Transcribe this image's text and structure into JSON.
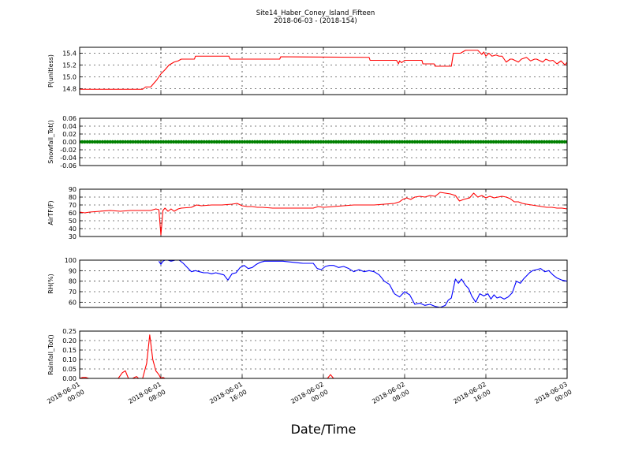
{
  "title": "Site14_Haber_Coney_Island_Fifteen",
  "subtitle": "2018-06-03 - (2018-154)",
  "xlabel": "Date/Time",
  "x_ticks": [
    {
      "t": 0,
      "line1": "2018-06-01",
      "line2": "00:00"
    },
    {
      "t": 8,
      "line1": "2018-06-01",
      "line2": "08:00"
    },
    {
      "t": 16,
      "line1": "2018-06-01",
      "line2": "16:00"
    },
    {
      "t": 24,
      "line1": "2018-06-02",
      "line2": "00:00"
    },
    {
      "t": 32,
      "line1": "2018-06-02",
      "line2": "08:00"
    },
    {
      "t": 40,
      "line1": "2018-06-02",
      "line2": "16:00"
    },
    {
      "t": 48,
      "line1": "2018-06-03",
      "line2": "00:00"
    }
  ],
  "chart_data": [
    {
      "type": "line",
      "ylabel": "P(unitless)",
      "ylim": [
        14.7,
        15.5
      ],
      "yticks": [
        14.8,
        15.0,
        15.2,
        15.4
      ],
      "ytick_labels": [
        "14.8",
        "15.0",
        "15.2",
        "15.4"
      ],
      "grid": true,
      "color": "#ff0000",
      "x": [
        0,
        6.2,
        6.5,
        7.0,
        7.6,
        8.0,
        8.4,
        8.8,
        9.3,
        9.7,
        10.0,
        11.3,
        11.4,
        14.7,
        14.8,
        19.7,
        19.8,
        28.5,
        28.6,
        31.2,
        31.4,
        31.5,
        31.7,
        32.0,
        33.7,
        33.8,
        34.9,
        35.0,
        36.6,
        36.8,
        37.5,
        38.0,
        39.2,
        39.6,
        39.8,
        40.0,
        40.3,
        40.6,
        41.0,
        41.3,
        41.6,
        42.0,
        42.4,
        42.6,
        43.2,
        43.5,
        44.0,
        44.4,
        44.8,
        45.0,
        45.6,
        45.9,
        46.3,
        46.6,
        47.0,
        47.4,
        47.8,
        48.0
      ],
      "y": [
        14.79,
        14.79,
        14.83,
        14.83,
        14.95,
        15.05,
        15.12,
        15.2,
        15.25,
        15.27,
        15.3,
        15.3,
        15.35,
        15.35,
        15.3,
        15.3,
        15.34,
        15.33,
        15.28,
        15.28,
        15.22,
        15.27,
        15.24,
        15.28,
        15.28,
        15.22,
        15.22,
        15.18,
        15.18,
        15.4,
        15.4,
        15.45,
        15.45,
        15.38,
        15.42,
        15.35,
        15.4,
        15.35,
        15.37,
        15.35,
        15.35,
        15.25,
        15.3,
        15.3,
        15.25,
        15.3,
        15.33,
        15.27,
        15.3,
        15.3,
        15.25,
        15.3,
        15.27,
        15.28,
        15.22,
        15.27,
        15.2,
        15.25
      ]
    },
    {
      "type": "scatter",
      "ylabel": "Snowfall_Tot()",
      "ylim": [
        -0.06,
        0.06
      ],
      "yticks": [
        -0.06,
        -0.04,
        -0.02,
        0.0,
        0.02,
        0.04,
        0.06
      ],
      "ytick_labels": [
        "-0.06",
        "-0.04",
        "-0.02",
        "0.00",
        "0.02",
        "0.04",
        "0.06"
      ],
      "grid": true,
      "color": "#008000",
      "x_start": 0,
      "x_end": 48,
      "x_step": 0.25,
      "constant_value": 0.0
    },
    {
      "type": "line",
      "ylabel": "AirTF(F)",
      "ylim": [
        30,
        90
      ],
      "yticks": [
        30,
        40,
        50,
        60,
        70,
        80,
        90
      ],
      "ytick_labels": [
        "30",
        "40",
        "50",
        "60",
        "70",
        "80",
        "90"
      ],
      "grid": true,
      "color": "#ff0000",
      "x": [
        0,
        0.5,
        1,
        2,
        3,
        4,
        5,
        6,
        7,
        7.5,
        7.8,
        8.0,
        8.2,
        8.4,
        8.7,
        9.0,
        9.3,
        9.7,
        10.0,
        11.0,
        11.5,
        12.0,
        13.0,
        14.0,
        15.0,
        15.5,
        16.0,
        16.5,
        17.0,
        17.5,
        18.0,
        19.0,
        20.0,
        22.0,
        23.0,
        23.5,
        24.0,
        25.0,
        26.0,
        27.0,
        28.0,
        29.0,
        30.0,
        31.0,
        31.5,
        31.8,
        32.2,
        32.6,
        33.0,
        33.5,
        34.0,
        34.5,
        35.0,
        35.5,
        36.0,
        36.5,
        37.0,
        37.4,
        37.8,
        38.4,
        38.8,
        39.2,
        39.6,
        40.0,
        40.4,
        40.8,
        41.2,
        41.6,
        42.0,
        42.4,
        42.8,
        43.2,
        43.6,
        44.0,
        44.5,
        45.0,
        45.5,
        46.0,
        46.5,
        47.0,
        47.5,
        48.0
      ],
      "y": [
        61,
        60,
        61,
        62,
        63,
        62,
        63,
        63,
        63,
        65,
        64,
        32,
        63,
        66,
        62,
        65,
        62,
        65,
        66,
        67,
        70,
        69,
        70,
        70,
        71,
        72,
        69,
        68,
        68,
        67,
        67,
        66,
        66,
        66,
        66,
        68,
        67,
        68,
        69,
        70,
        70,
        70,
        71,
        72,
        74,
        77,
        79,
        77,
        80,
        81,
        80,
        82,
        81,
        86,
        85,
        84,
        82,
        75,
        77,
        79,
        85,
        80,
        82,
        79,
        81,
        79,
        80,
        81,
        80,
        78,
        74,
        74,
        72,
        71,
        70,
        69,
        68,
        67,
        67,
        66,
        66,
        65
      ]
    },
    {
      "type": "line",
      "ylabel": "RH(%)",
      "ylim": [
        55,
        100
      ],
      "yticks": [
        60,
        70,
        80,
        90,
        100
      ],
      "ytick_labels": [
        "60",
        "70",
        "80",
        "90",
        "100"
      ],
      "grid": true,
      "color": "#0000ff",
      "x": [
        7.8,
        8.0,
        8.2,
        8.4,
        8.7,
        9.0,
        9.4,
        9.8,
        10.2,
        10.6,
        11.0,
        11.4,
        11.8,
        12.2,
        12.6,
        13.0,
        13.4,
        13.8,
        14.2,
        14.6,
        15.0,
        15.4,
        15.8,
        16.2,
        16.6,
        17.0,
        17.4,
        17.8,
        18.2,
        18.6,
        19.0,
        19.5,
        20.0,
        21.0,
        22.0,
        23.0,
        23.4,
        23.8,
        24.2,
        24.6,
        25.0,
        25.5,
        26.0,
        26.5,
        27.0,
        27.5,
        28.0,
        28.5,
        29.0,
        29.5,
        30.0,
        30.5,
        31.0,
        31.5,
        32.0,
        32.5,
        33.0,
        33.5,
        34.0,
        34.5,
        35.0,
        35.5,
        36.0,
        36.3,
        36.6,
        37.0,
        37.3,
        37.6,
        38.0,
        38.3,
        38.6,
        39.0,
        39.4,
        39.8,
        40.2,
        40.5,
        40.8,
        41.1,
        41.4,
        41.8,
        42.2,
        42.6,
        43.0,
        43.4,
        43.7,
        44.0,
        44.3,
        44.6,
        45.0,
        45.4,
        45.8,
        46.2,
        46.6,
        47.0,
        47.5,
        48.0
      ],
      "y": [
        99,
        96,
        99,
        100,
        100,
        99,
        100,
        100,
        97,
        93,
        89,
        90,
        89,
        88,
        88,
        87,
        88,
        87,
        86,
        81,
        87,
        88,
        93,
        95,
        92,
        93,
        96,
        98,
        99,
        99,
        99,
        99,
        99,
        98,
        97,
        97,
        92,
        91,
        94,
        95,
        95,
        93,
        94,
        92,
        89,
        91,
        89,
        90,
        89,
        86,
        80,
        77,
        68,
        65,
        70,
        67,
        58,
        59,
        57,
        58,
        56,
        55,
        57,
        62,
        64,
        82,
        78,
        82,
        76,
        73,
        66,
        60,
        68,
        66,
        68,
        63,
        67,
        64,
        65,
        63,
        65,
        69,
        80,
        78,
        82,
        85,
        88,
        90,
        91,
        92,
        89,
        90,
        86,
        83,
        81,
        80
      ]
    },
    {
      "type": "line",
      "ylabel": "Rainfall_Tot()",
      "ylim": [
        0.0,
        0.25
      ],
      "yticks": [
        0.0,
        0.05,
        0.1,
        0.15,
        0.2,
        0.25
      ],
      "ytick_labels": [
        "0.00",
        "0.05",
        "0.10",
        "0.15",
        "0.20",
        "0.25"
      ],
      "grid": true,
      "color": "#ff0000",
      "x": [
        0,
        0.3,
        0.6,
        0.9,
        3.8,
        4.2,
        4.5,
        4.8,
        5.2,
        5.6,
        5.8,
        6.2,
        6.6,
        6.9,
        7.2,
        7.5,
        7.8,
        8.0,
        8.2,
        8.4,
        24.4,
        24.7,
        25.0,
        48.0
      ],
      "y": [
        0,
        0.005,
        0.005,
        0,
        0,
        0.03,
        0.04,
        0,
        0,
        0.01,
        0,
        0,
        0.08,
        0.23,
        0.1,
        0.04,
        0.02,
        0,
        0.005,
        0,
        0,
        0.02,
        0,
        0
      ]
    }
  ]
}
